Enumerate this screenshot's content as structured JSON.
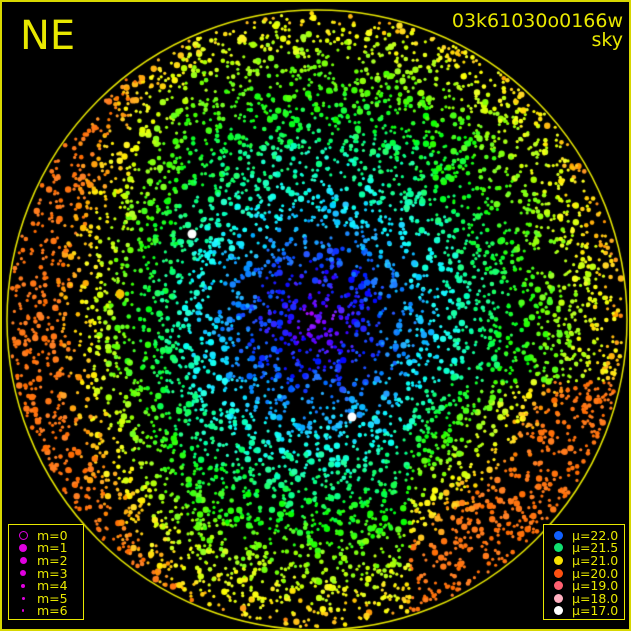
{
  "direction_label": "NE",
  "frame_id": "03k61030o0166w",
  "frame_type": "sky",
  "colors": {
    "border": "#e8e800",
    "horizon": "#e8e800",
    "text": "#e8e800",
    "magnitude_symbol": "#e000e0"
  },
  "magnitude_legend": [
    {
      "label": "m=0",
      "style": "ring"
    },
    {
      "label": "m=1"
    },
    {
      "label": "m=2"
    },
    {
      "label": "m=3"
    },
    {
      "label": "m=4"
    },
    {
      "label": "m=5"
    },
    {
      "label": "m=6"
    }
  ],
  "mu_legend": [
    {
      "label": "μ=22.0",
      "color": "#1060ff"
    },
    {
      "label": "μ=21.5",
      "color": "#10e070"
    },
    {
      "label": "μ=21.0",
      "color": "#f8e000"
    },
    {
      "label": "μ=20.0",
      "color": "#ff5010"
    },
    {
      "label": "μ=19.0",
      "color": "#ff6070"
    },
    {
      "label": "μ=18.0",
      "color": "#ffb0c0"
    },
    {
      "label": "μ=17.0",
      "color": "#ffffff"
    }
  ]
}
